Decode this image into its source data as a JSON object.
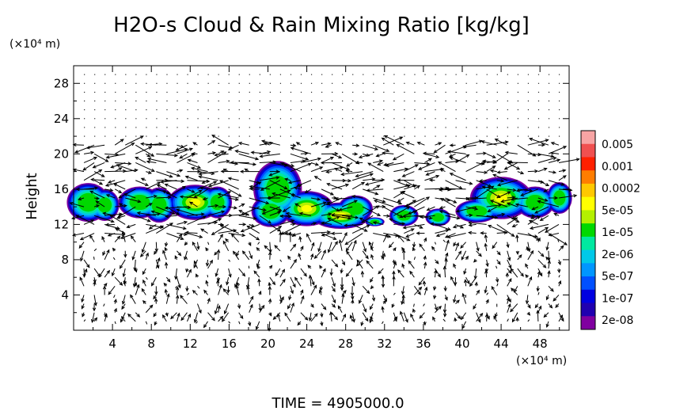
{
  "chart_data": {
    "type": "heatmap",
    "title": "H2O-s Cloud & Rain Mixing Ratio [kg/kg]",
    "x_unit_label": "(×10⁴ m)",
    "y_unit_label": "(×10⁴ m)",
    "ylabel": "Height",
    "xlim": [
      0,
      51
    ],
    "ylim": [
      0,
      30
    ],
    "x_ticks": [
      4,
      8,
      12,
      16,
      20,
      24,
      28,
      32,
      36,
      40,
      44,
      48
    ],
    "y_ticks": [
      4,
      8,
      12,
      16,
      20,
      24,
      28
    ],
    "colorbar": {
      "labels": [
        "0.005",
        "0.001",
        "0.0002",
        "5e-05",
        "1e-05",
        "2e-06",
        "5e-07",
        "1e-07",
        "2e-08"
      ],
      "colors": [
        "#f7a4a4",
        "#f05050",
        "#ff2000",
        "#ff7d00",
        "#ffc800",
        "#ffff00",
        "#b4f000",
        "#00d800",
        "#00e8a0",
        "#00c8e8",
        "#0096ff",
        "#0050ff",
        "#0000e0",
        "#2000b0",
        "#8000a0"
      ]
    },
    "cloud_region": {
      "height_min": 11.5,
      "height_max": 19.5,
      "description_x_clusters": [
        [
          0,
          4
        ],
        [
          5,
          10
        ],
        [
          11,
          16
        ],
        [
          18,
          30
        ],
        [
          33,
          40
        ],
        [
          40,
          51
        ]
      ]
    },
    "time_label": "TIME = 4905000.0"
  }
}
